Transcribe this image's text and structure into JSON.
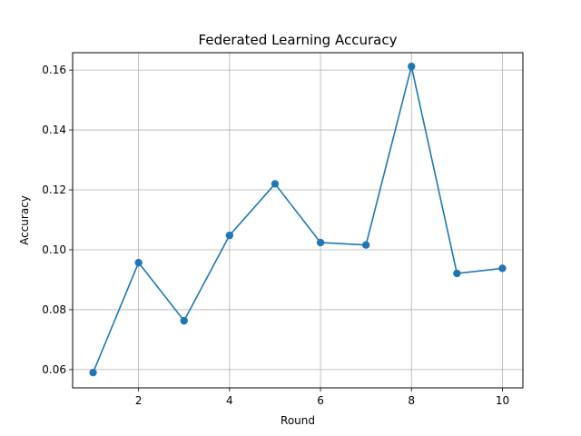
{
  "chart_data": {
    "type": "line",
    "title": "Federated Learning Accuracy",
    "xlabel": "Round",
    "ylabel": "Accuracy",
    "x": [
      1,
      2,
      3,
      4,
      5,
      6,
      7,
      8,
      9,
      10
    ],
    "series": [
      {
        "values": [
          0.059,
          0.0957,
          0.0763,
          0.1048,
          0.122,
          0.1024,
          0.1016,
          0.1612,
          0.0921,
          0.0938
        ],
        "color": "#1f77b4",
        "marker": "circle"
      }
    ],
    "xlim": [
      0.55,
      10.45
    ],
    "ylim": [
      0.0539,
      0.1658
    ],
    "xticks": [
      2,
      4,
      6,
      8,
      10
    ],
    "yticks": [
      0.06,
      0.08,
      0.1,
      0.12,
      0.14,
      0.16
    ],
    "xtick_labels": [
      "2",
      "4",
      "6",
      "8",
      "10"
    ],
    "ytick_labels": [
      "0.06",
      "0.08",
      "0.10",
      "0.12",
      "0.14",
      "0.16"
    ],
    "grid": true
  }
}
